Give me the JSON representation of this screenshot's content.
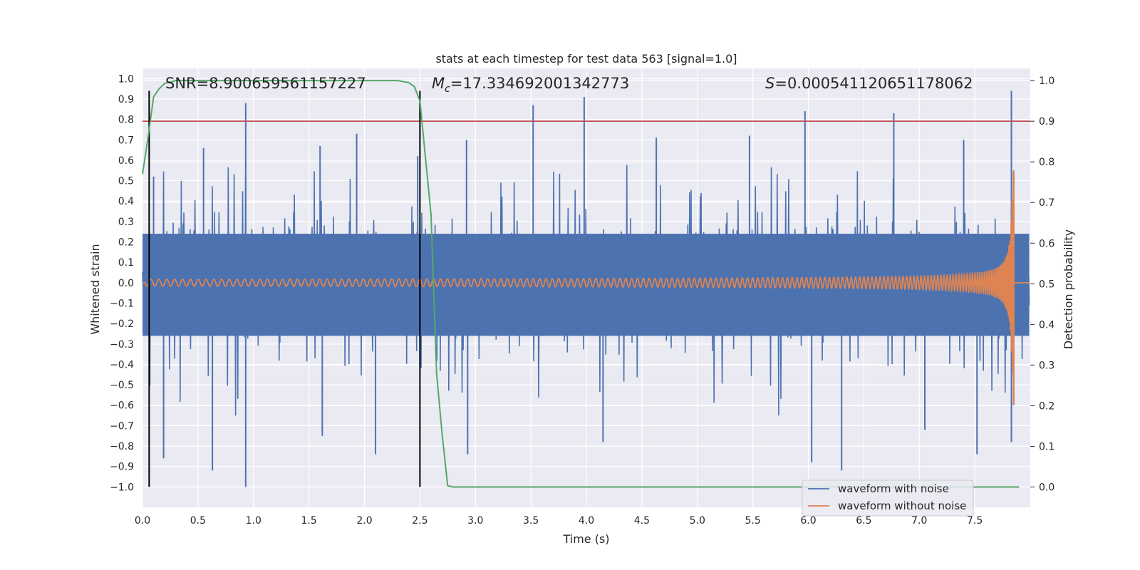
{
  "chart_data": {
    "type": "line",
    "title": "stats at each timestep for test data 563 [signal=1.0]",
    "xlabel": "Time (s)",
    "ylabel": "Whitened strain",
    "y2label": "Detection probability",
    "xlim": [
      0.0,
      8.0
    ],
    "ylim": [
      -1.1,
      1.05
    ],
    "y2lim": [
      -0.05,
      1.03
    ],
    "x_ticks": [
      "0.0",
      "0.5",
      "1.0",
      "1.5",
      "2.0",
      "2.5",
      "3.0",
      "3.5",
      "4.0",
      "4.5",
      "5.0",
      "5.5",
      "6.0",
      "6.5",
      "7.0",
      "7.5"
    ],
    "y_ticks": [
      "1.0",
      "0.9",
      "0.8",
      "0.7",
      "0.6",
      "0.5",
      "0.4",
      "0.3",
      "0.2",
      "0.1",
      "0.0",
      "-0.1",
      "-0.2",
      "-0.3",
      "-0.4",
      "-0.5",
      "-0.6",
      "-0.7",
      "-0.8",
      "-0.9",
      "-1.0"
    ],
    "y2_ticks": [
      "1.0",
      "0.9",
      "0.8",
      "0.7",
      "0.6",
      "0.5",
      "0.4",
      "0.3",
      "0.2",
      "0.1",
      "0.0"
    ],
    "grid": true,
    "legend_position": "lower-right",
    "annotations": {
      "snr": "SNR=8.900659561157227",
      "mc_symbol": "M",
      "mc_sub": "c",
      "mc_value": "=17.334692001342773",
      "s_symbol": "S",
      "s_value": "=0.000541120651178062"
    },
    "series": [
      {
        "name": "waveform with noise",
        "color": "#4c72b0",
        "description_values": "dense noise, envelope approx ±0.4 with spikes up to ~0.94 and down to ~-1.0",
        "spikes": [
          {
            "x": 0.1,
            "y": 0.52
          },
          {
            "x": 0.19,
            "y": -0.86
          },
          {
            "x": 0.55,
            "y": 0.66
          },
          {
            "x": 0.63,
            "y": -0.92
          },
          {
            "x": 0.93,
            "y": 0.88
          },
          {
            "x": 0.93,
            "y": -1.0
          },
          {
            "x": 1.6,
            "y": 0.67
          },
          {
            "x": 1.62,
            "y": -0.75
          },
          {
            "x": 1.93,
            "y": 0.73
          },
          {
            "x": 2.1,
            "y": -0.84
          },
          {
            "x": 2.48,
            "y": 0.62
          },
          {
            "x": 2.92,
            "y": 0.7
          },
          {
            "x": 2.93,
            "y": -0.84
          },
          {
            "x": 3.52,
            "y": 0.87
          },
          {
            "x": 3.98,
            "y": 0.91
          },
          {
            "x": 4.15,
            "y": -0.78
          },
          {
            "x": 4.63,
            "y": 0.71
          },
          {
            "x": 5.47,
            "y": 0.72
          },
          {
            "x": 5.97,
            "y": 0.84
          },
          {
            "x": 6.03,
            "y": -0.88
          },
          {
            "x": 6.3,
            "y": -0.92
          },
          {
            "x": 6.77,
            "y": 0.83
          },
          {
            "x": 7.05,
            "y": -0.72
          },
          {
            "x": 7.4,
            "y": 0.7
          },
          {
            "x": 7.52,
            "y": -0.84
          },
          {
            "x": 7.83,
            "y": 0.94
          },
          {
            "x": 7.83,
            "y": -0.78
          }
        ]
      },
      {
        "name": "waveform without noise",
        "color": "#dd8452",
        "description_values": "chirp oscillation, amplitude ~0.01 at t=0 growing to ~0.55 at merger t≈7.85, then 0",
        "merger_time": 7.85,
        "peak_amplitude": 0.55
      },
      {
        "name": "detection probability",
        "color": "#55a868",
        "axis": "right",
        "x": [
          0.0,
          0.05,
          0.1,
          0.15,
          0.2,
          0.3,
          0.5,
          1.0,
          2.0,
          2.3,
          2.4,
          2.45,
          2.5,
          2.6,
          2.65,
          2.7,
          2.75,
          2.8,
          3.0,
          5.0,
          7.9
        ],
        "y": [
          0.77,
          0.86,
          0.96,
          0.98,
          0.993,
          1.0,
          1.0,
          1.0,
          1.0,
          1.0,
          0.995,
          0.985,
          0.95,
          0.67,
          0.28,
          0.13,
          0.003,
          0.0,
          0.0,
          0.0,
          0.0
        ]
      }
    ],
    "horizontal_lines": [
      {
        "axis": "right",
        "value": 0.9,
        "color": "#c44e52"
      }
    ],
    "vertical_lines": [
      {
        "x": 0.06,
        "y_range": [
          -1.0,
          0.94
        ],
        "color": "#000000"
      },
      {
        "x": 2.5,
        "y_range": [
          -1.0,
          0.94
        ],
        "color": "#000000"
      }
    ]
  }
}
